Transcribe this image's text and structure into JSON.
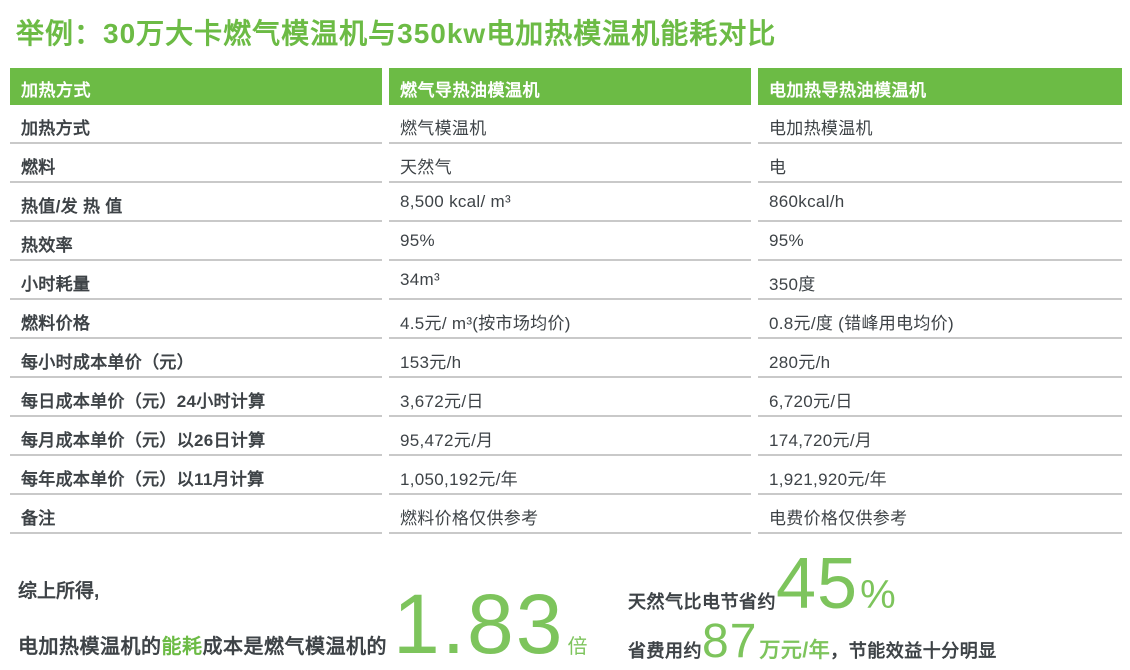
{
  "title": "举例：30万大卡燃气模温机与350kw电加热模温机能耗对比",
  "colors": {
    "green": "#6cbb45",
    "light_green": "#7dc45c",
    "text": "#3e4347",
    "separator": "#c9c9c9"
  },
  "table": {
    "headers": [
      "加热方式",
      "燃气导热油模温机",
      "电加热导热油模温机"
    ],
    "rows": [
      [
        "加热方式",
        "燃气模温机",
        "电加热模温机"
      ],
      [
        "燃料",
        "天然气",
        "电"
      ],
      [
        "热值/发 热 值",
        "8,500 kcal/ m³",
        "860kcal/h"
      ],
      [
        "热效率",
        "95%",
        "95%"
      ],
      [
        "小时耗量",
        "34m³",
        "350度"
      ],
      [
        "燃料价格",
        "4.5元/ m³(按市场均价)",
        "0.8元/度 (错峰用电均价)"
      ],
      [
        "每小时成本单价（元）",
        "153元/h",
        "280元/h"
      ],
      [
        "每日成本单价（元）24小时计算",
        "3,672元/日",
        "6,720元/日"
      ],
      [
        "每月成本单价（元）以26日计算",
        "95,472元/月",
        "174,720元/月"
      ],
      [
        "每年成本单价（元）以11月计算",
        "1,050,192元/年",
        "1,921,920元/年"
      ],
      [
        "备注",
        "燃料价格仅供参考",
        "电费价格仅供参考"
      ]
    ]
  },
  "chart_data": {
    "type": "table",
    "title": "举例：30万大卡燃气模温机与350kw电加热模温机能耗对比",
    "columns": [
      "加热方式",
      "燃气导热油模温机",
      "电加热导热油模温机"
    ],
    "rows": [
      [
        "加热方式",
        "燃气模温机",
        "电加热模温机"
      ],
      [
        "燃料",
        "天然气",
        "电"
      ],
      [
        "热值/发 热 值",
        "8,500 kcal/ m³",
        "860kcal/h"
      ],
      [
        "热效率",
        "95%",
        "95%"
      ],
      [
        "小时耗量",
        "34m³",
        "350度"
      ],
      [
        "燃料价格",
        "4.5元/ m³(按市场均价)",
        "0.8元/度 (错峰用电均价)"
      ],
      [
        "每小时成本单价（元）",
        "153元/h",
        "280元/h"
      ],
      [
        "每日成本单价（元）24小时计算",
        "3,672元/日",
        "6,720元/日"
      ],
      [
        "每月成本单价（元）以26日计算",
        "95,472元/月",
        "174,720元/月"
      ],
      [
        "每年成本单价（元）以11月计算",
        "1,050,192元/年",
        "1,921,920元/年"
      ],
      [
        "备注",
        "燃料价格仅供参考",
        "电费价格仅供参考"
      ]
    ]
  },
  "summary": {
    "intro": "综上所得,",
    "left_prefix": "电加热模温机的",
    "left_highlight": "能耗",
    "left_suffix": "成本是燃气模温机的",
    "ratio_value": "1.83",
    "ratio_unit": "倍",
    "right_line1_label": "天然气比电节省约",
    "savings_percent": "45",
    "percent_sign": "%",
    "right_line2_label": "省费用约",
    "savings_amount": "87",
    "savings_unit": "万元/年",
    "right_line2_suffix": "，节能效益十分明显"
  }
}
